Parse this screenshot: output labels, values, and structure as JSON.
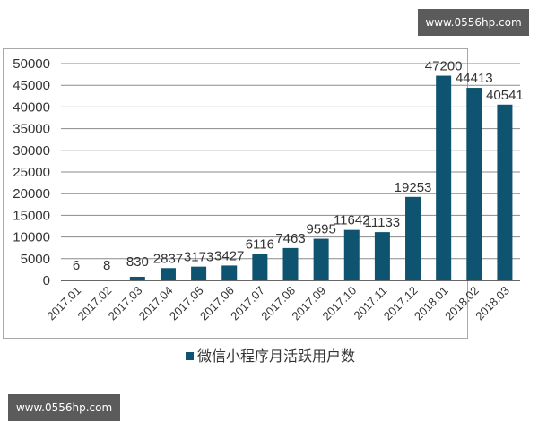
{
  "watermark": {
    "top": "www.0556hp.com",
    "bottom": "www.0556hp.com"
  },
  "chart_data": {
    "type": "bar",
    "title": "",
    "xlabel": "",
    "ylabel": "",
    "categories": [
      "2017.01",
      "2017.02",
      "2017.03",
      "2017.04",
      "2017.05",
      "2017.06",
      "2017.07",
      "2017.08",
      "2017.09",
      "2017.10",
      "2017.11",
      "2017.12",
      "2018.01",
      "2018.02",
      "2018.03"
    ],
    "series": [
      {
        "name": "微信小程序月活跃用户数",
        "color": "#0e5470",
        "values": [
          6,
          8,
          830,
          2837,
          3173,
          3427,
          6116,
          7463,
          9595,
          11642,
          11133,
          19253,
          47200,
          44413,
          40541
        ]
      }
    ],
    "yticks": [
      0,
      5000,
      10000,
      15000,
      20000,
      25000,
      30000,
      35000,
      40000,
      45000,
      50000
    ],
    "ylim": [
      0,
      50000
    ],
    "grid": true,
    "data_labels": true,
    "legend_position": "bottom"
  },
  "legend": {
    "label": "微信小程序月活跃用户数"
  }
}
